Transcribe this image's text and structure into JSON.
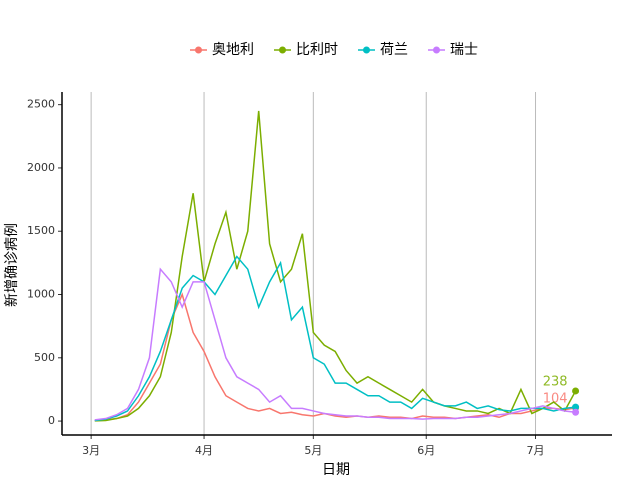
{
  "chart_data": {
    "type": "line",
    "x_label": "日期",
    "y_label": "新增确诊病例",
    "x": [
      1,
      4,
      7,
      10,
      13,
      16,
      19,
      22,
      25,
      28,
      31,
      34,
      37,
      40,
      43,
      46,
      49,
      52,
      55,
      58,
      61,
      64,
      67,
      70,
      73,
      76,
      79,
      82,
      85,
      88,
      91,
      94,
      97,
      100,
      103,
      106,
      109,
      112,
      115,
      118,
      121,
      124,
      127,
      130,
      133
    ],
    "series": [
      {
        "name": "奥地利",
        "color": "#F8766D",
        "label_end": true,
        "values": [
          5,
          10,
          20,
          50,
          150,
          300,
          450,
          800,
          1000,
          700,
          550,
          350,
          200,
          150,
          100,
          80,
          100,
          60,
          70,
          50,
          40,
          60,
          40,
          30,
          40,
          30,
          40,
          30,
          30,
          20,
          40,
          30,
          30,
          20,
          30,
          40,
          50,
          30,
          60,
          60,
          80,
          100,
          100,
          90,
          104
        ]
      },
      {
        "name": "比利时",
        "color": "#7CAE00",
        "label_end": true,
        "values": [
          2,
          5,
          20,
          40,
          100,
          200,
          350,
          700,
          1300,
          1800,
          1100,
          1400,
          1650,
          1200,
          1500,
          2450,
          1400,
          1100,
          1200,
          1480,
          700,
          600,
          550,
          400,
          300,
          350,
          300,
          250,
          200,
          150,
          250,
          150,
          120,
          100,
          80,
          80,
          60,
          100,
          60,
          250,
          60,
          100,
          150,
          80,
          238
        ]
      },
      {
        "name": "荷兰",
        "color": "#00BFC4",
        "label_end": false,
        "values": [
          5,
          15,
          40,
          80,
          200,
          350,
          550,
          800,
          1050,
          1150,
          1100,
          1000,
          1150,
          1300,
          1200,
          900,
          1100,
          1250,
          800,
          900,
          500,
          450,
          300,
          300,
          250,
          200,
          200,
          150,
          150,
          100,
          180,
          150,
          120,
          120,
          150,
          100,
          120,
          90,
          80,
          100,
          100,
          100,
          80,
          100,
          110
        ]
      },
      {
        "name": "瑞士",
        "color": "#C77CFF",
        "label_end": false,
        "values": [
          10,
          20,
          50,
          100,
          250,
          500,
          1200,
          1100,
          900,
          1100,
          1100,
          800,
          500,
          350,
          300,
          250,
          150,
          200,
          100,
          100,
          80,
          60,
          50,
          40,
          40,
          30,
          30,
          20,
          20,
          20,
          15,
          20,
          20,
          20,
          30,
          30,
          40,
          50,
          60,
          80,
          100,
          120,
          100,
          80,
          70
        ]
      }
    ],
    "xlim": [
      -8,
      143
    ],
    "ylim": [
      -110,
      2600
    ],
    "xticks": [
      {
        "value": 0,
        "label": "3月"
      },
      {
        "value": 31,
        "label": "4月"
      },
      {
        "value": 61,
        "label": "5月"
      },
      {
        "value": 92,
        "label": "6月"
      },
      {
        "value": 122,
        "label": "7月"
      }
    ],
    "yticks": [
      0,
      500,
      1000,
      1500,
      2000,
      2500
    ],
    "grid": "x",
    "legend": "top"
  }
}
